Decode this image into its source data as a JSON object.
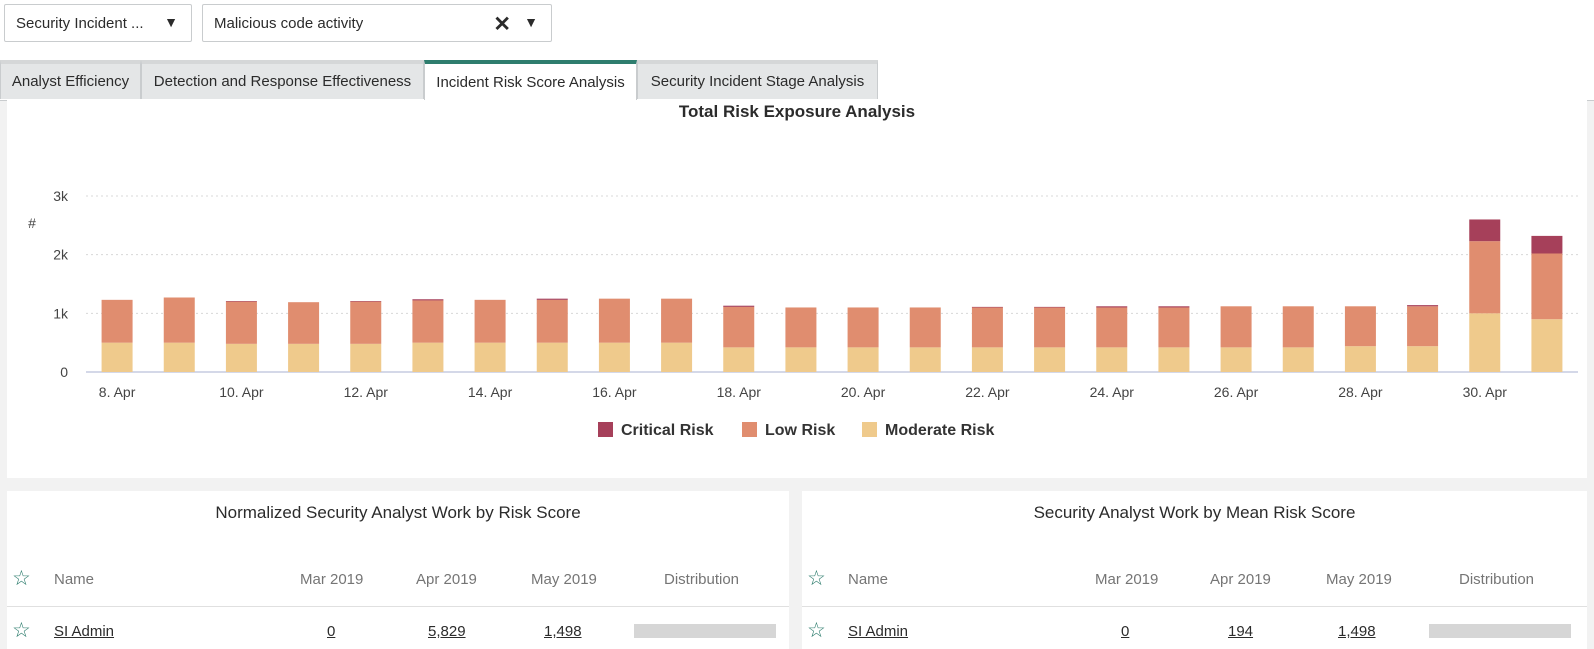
{
  "filters": {
    "type_select": "Security Incident ...",
    "category_select": "Malicious code activity"
  },
  "tabs": [
    {
      "label": "Analyst Efficiency"
    },
    {
      "label": "Detection and Response Effectiveness"
    },
    {
      "label": "Incident Risk Score Analysis",
      "active": true
    },
    {
      "label": "Security Incident Stage Analysis"
    }
  ],
  "chart_data": {
    "type": "bar",
    "stacked": true,
    "title": "Total Risk Exposure Analysis",
    "xlabel": "",
    "ylabel": "#",
    "ylim": [
      0,
      3000
    ],
    "yticks": [
      "0",
      "1k",
      "2k",
      "3k"
    ],
    "grid": true,
    "legend_position": "bottom-center",
    "categories": [
      "8. Apr",
      "9. Apr",
      "10. Apr",
      "11. Apr",
      "12. Apr",
      "13. Apr",
      "14. Apr",
      "15. Apr",
      "16. Apr",
      "17. Apr",
      "18. Apr",
      "19. Apr",
      "20. Apr",
      "21. Apr",
      "22. Apr",
      "23. Apr",
      "24. Apr",
      "25. Apr",
      "26. Apr",
      "27. Apr",
      "28. Apr",
      "29. Apr",
      "30. Apr",
      "1. May"
    ],
    "x_tick_labels": [
      "8. Apr",
      "10. Apr",
      "12. Apr",
      "14. Apr",
      "16. Apr",
      "18. Apr",
      "20. Apr",
      "22. Apr",
      "24. Apr",
      "26. Apr",
      "28. Apr",
      "30. Apr"
    ],
    "series": [
      {
        "name": "Moderate Risk",
        "color": "#efca8c",
        "values": [
          500,
          500,
          480,
          480,
          480,
          500,
          500,
          500,
          500,
          500,
          420,
          420,
          420,
          420,
          420,
          420,
          420,
          420,
          420,
          420,
          440,
          440,
          1000,
          900
        ]
      },
      {
        "name": "Low Risk",
        "color": "#e08d6f",
        "values": [
          730,
          770,
          720,
          710,
          720,
          720,
          730,
          730,
          750,
          750,
          690,
          680,
          680,
          680,
          680,
          680,
          680,
          680,
          700,
          700,
          680,
          680,
          1230,
          1120
        ]
      },
      {
        "name": "Critical Risk",
        "color": "#a6405a",
        "values": [
          0,
          0,
          10,
          0,
          10,
          20,
          0,
          20,
          0,
          0,
          20,
          0,
          0,
          0,
          10,
          10,
          20,
          20,
          0,
          0,
          0,
          20,
          370,
          300
        ]
      }
    ]
  },
  "legend_order": [
    "Critical Risk",
    "Low Risk",
    "Moderate Risk"
  ],
  "left_table": {
    "title": "Normalized Security Analyst Work by Risk Score",
    "headers": {
      "name": "Name",
      "c1": "Mar 2019",
      "c2": "Apr 2019",
      "c3": "May 2019",
      "dist": "Distribution"
    },
    "rows": [
      {
        "name": "SI Admin",
        "c1": "0",
        "c2": "5,829",
        "c3": "1,498"
      }
    ]
  },
  "right_table": {
    "title": "Security Analyst Work by Mean Risk Score",
    "headers": {
      "name": "Name",
      "c1": "Mar 2019",
      "c2": "Apr 2019",
      "c3": "May 2019",
      "dist": "Distribution"
    },
    "rows": [
      {
        "name": "SI Admin",
        "c1": "0",
        "c2": "194",
        "c3": "1,498"
      }
    ]
  },
  "icons": {
    "star": "star-outline-icon",
    "clear": "close-icon",
    "caret": "caret-down-icon"
  }
}
